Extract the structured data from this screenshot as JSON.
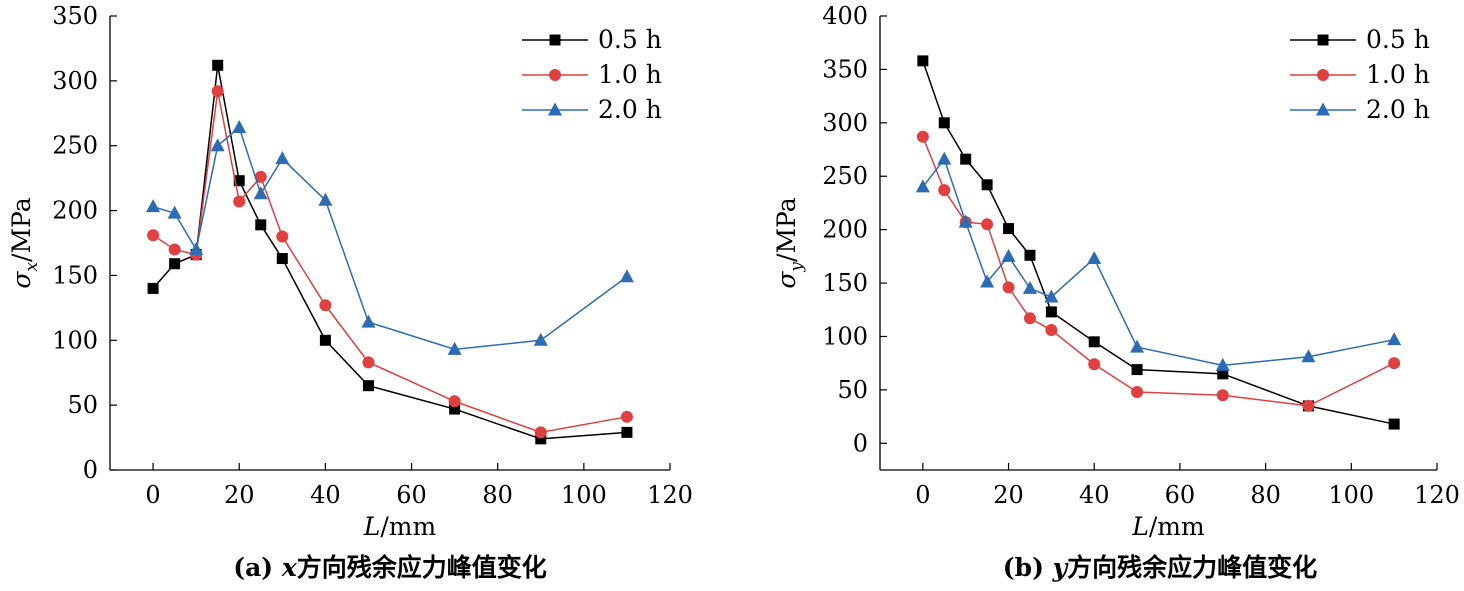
{
  "chart_data": [
    {
      "type": "line",
      "ylabel_sym": "σ",
      "ylabel_sub": "x",
      "ylabel_unit": "/MPa",
      "xlabel_sym": "L",
      "xlabel_unit": "/mm",
      "xlim": [
        -10,
        120
      ],
      "ylim": [
        0,
        350
      ],
      "xticks": [
        0,
        20,
        40,
        60,
        80,
        100,
        120
      ],
      "yticks": [
        0,
        50,
        100,
        150,
        200,
        250,
        300,
        350
      ],
      "legend_position": "top-right",
      "caption_prefix": "(a) ",
      "caption_var": "x",
      "caption_text": "方向残余应力峰值变化",
      "series": [
        {
          "name": "0.5 h",
          "color": "#000000",
          "marker": "square",
          "x": [
            0,
            5,
            10,
            15,
            20,
            25,
            30,
            40,
            50,
            70,
            90,
            110
          ],
          "y": [
            140,
            159,
            166,
            312,
            223,
            189,
            163,
            100,
            65,
            47,
            24,
            29
          ]
        },
        {
          "name": "1.0 h",
          "color": "#e0403f",
          "marker": "circle",
          "x": [
            0,
            5,
            10,
            15,
            20,
            25,
            30,
            40,
            50,
            70,
            90,
            110
          ],
          "y": [
            181,
            170,
            166,
            292,
            207,
            226,
            180,
            127,
            83,
            53,
            29,
            41
          ]
        },
        {
          "name": "2.0 h",
          "color": "#2e6bb5",
          "marker": "triangle",
          "x": [
            0,
            5,
            10,
            15,
            20,
            25,
            30,
            40,
            50,
            70,
            90,
            110
          ],
          "y": [
            203,
            198,
            170,
            250,
            264,
            213,
            240,
            208,
            114,
            93,
            100,
            149
          ]
        }
      ]
    },
    {
      "type": "line",
      "ylabel_sym": "σ",
      "ylabel_sub": "y",
      "ylabel_unit": "/MPa",
      "xlabel_sym": "L",
      "xlabel_unit": "/mm",
      "xlim": [
        -10,
        120
      ],
      "ylim": [
        -25,
        400
      ],
      "xticks": [
        0,
        20,
        40,
        60,
        80,
        100,
        120
      ],
      "yticks": [
        0,
        50,
        100,
        150,
        200,
        250,
        300,
        350,
        400
      ],
      "legend_position": "top-right",
      "caption_prefix": "(b) ",
      "caption_var": "y",
      "caption_text": "方向残余应力峰值变化",
      "series": [
        {
          "name": "0.5 h",
          "color": "#000000",
          "marker": "square",
          "x": [
            0,
            5,
            10,
            15,
            20,
            25,
            30,
            40,
            50,
            70,
            90,
            110
          ],
          "y": [
            358,
            300,
            266,
            242,
            201,
            176,
            123,
            95,
            69,
            65,
            35,
            18
          ]
        },
        {
          "name": "1.0 h",
          "color": "#e0403f",
          "marker": "circle",
          "x": [
            0,
            5,
            10,
            15,
            20,
            25,
            30,
            40,
            50,
            70,
            90,
            110
          ],
          "y": [
            287,
            237,
            207,
            205,
            146,
            117,
            106,
            74,
            48,
            45,
            35,
            75
          ]
        },
        {
          "name": "2.0 h",
          "color": "#2e6bb5",
          "marker": "triangle",
          "x": [
            0,
            5,
            10,
            15,
            20,
            25,
            30,
            40,
            50,
            70,
            90,
            110
          ],
          "y": [
            240,
            266,
            207,
            151,
            175,
            145,
            137,
            173,
            90,
            73,
            81,
            97
          ]
        }
      ]
    }
  ]
}
